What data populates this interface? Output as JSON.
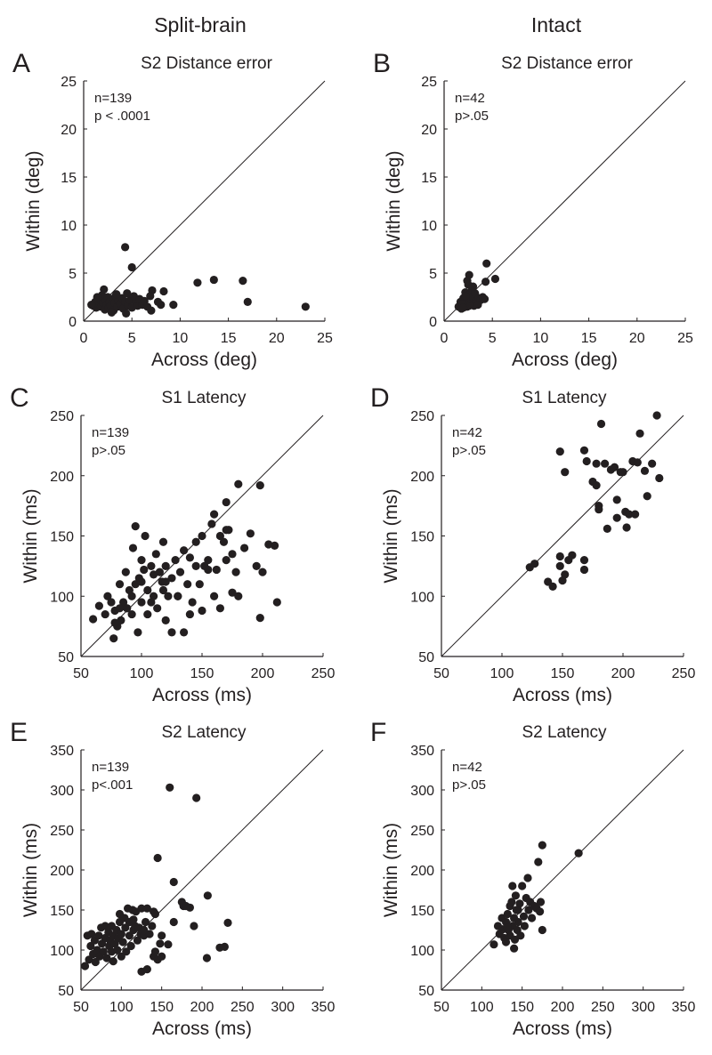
{
  "columns": [
    "Split-brain",
    "Intact"
  ],
  "chart_data": [
    {
      "type": "scatter",
      "panel": "A",
      "title": "S2 Distance error",
      "xlabel": "Across (deg)",
      "ylabel": "Within (deg)",
      "xlim": [
        0,
        25
      ],
      "ylim": [
        0,
        25
      ],
      "ticks": [
        0,
        5,
        10,
        15,
        20,
        25
      ],
      "n": "n=139",
      "p": "p < .0001",
      "diagonal": true,
      "points": [
        [
          1,
          1.6
        ],
        [
          1.2,
          2
        ],
        [
          1.3,
          1.4
        ],
        [
          1.5,
          1.8
        ],
        [
          1.6,
          2.3
        ],
        [
          1.8,
          1.5
        ],
        [
          1.9,
          2.7
        ],
        [
          2,
          1.9
        ],
        [
          2.1,
          3.3
        ],
        [
          2.2,
          1.2
        ],
        [
          2.3,
          2.1
        ],
        [
          2.4,
          1.7
        ],
        [
          2.5,
          2.5
        ],
        [
          2.6,
          1.4
        ],
        [
          2.7,
          2.0
        ],
        [
          2.8,
          1.6
        ],
        [
          3,
          2.3
        ],
        [
          3.1,
          1.1
        ],
        [
          3.2,
          1.9
        ],
        [
          3.3,
          2.6
        ],
        [
          3.5,
          1.5
        ],
        [
          3.6,
          2.1
        ],
        [
          3.8,
          1.8
        ],
        [
          4,
          2.4
        ],
        [
          4.1,
          1.3
        ],
        [
          4.3,
          2.0
        ],
        [
          4.5,
          2.9
        ],
        [
          4.6,
          1.6
        ],
        [
          4.8,
          2.2
        ],
        [
          5,
          1.4
        ],
        [
          5.2,
          2.6
        ],
        [
          5.4,
          1.9
        ],
        [
          5.6,
          1.6
        ],
        [
          5.8,
          2.3
        ],
        [
          6.1,
          1.7
        ],
        [
          6.3,
          2.1
        ],
        [
          6.6,
          1.5
        ],
        [
          7,
          1.1
        ],
        [
          0.8,
          1.7
        ],
        [
          1.4,
          2.5
        ],
        [
          2.9,
          0.9
        ],
        [
          3.4,
          2.8
        ],
        [
          4.4,
          0.8
        ],
        [
          4.3,
          7.7
        ],
        [
          5,
          5.6
        ],
        [
          11.8,
          4.0
        ],
        [
          13.5,
          4.3
        ],
        [
          16.5,
          4.2
        ],
        [
          17,
          2.0
        ],
        [
          23,
          1.5
        ],
        [
          7.1,
          3.2
        ],
        [
          8.3,
          3.1
        ],
        [
          9.3,
          1.7
        ],
        [
          6.9,
          2.6
        ],
        [
          8,
          1.7
        ],
        [
          7.7,
          2.0
        ]
      ]
    },
    {
      "type": "scatter",
      "panel": "B",
      "title": "S2 Distance error",
      "xlabel": "Across (deg)",
      "ylabel": "Within (deg)",
      "xlim": [
        0,
        25
      ],
      "ylim": [
        0,
        25
      ],
      "ticks": [
        0,
        5,
        10,
        15,
        20,
        25
      ],
      "n": "n=42",
      "p": "p>.05",
      "diagonal": true,
      "points": [
        [
          1.5,
          1.5
        ],
        [
          1.7,
          2.0
        ],
        [
          1.8,
          1.3
        ],
        [
          2,
          2.4
        ],
        [
          2.1,
          1.7
        ],
        [
          2.2,
          3.0
        ],
        [
          2.3,
          2.0
        ],
        [
          2.4,
          1.5
        ],
        [
          2.5,
          2.7
        ],
        [
          2.5,
          3.8
        ],
        [
          2.6,
          4.8
        ],
        [
          2.7,
          2.2
        ],
        [
          2.8,
          1.8
        ],
        [
          2.9,
          3.3
        ],
        [
          3,
          2.5
        ],
        [
          3.1,
          1.6
        ],
        [
          3.2,
          2.9
        ],
        [
          3.3,
          2.1
        ],
        [
          3.4,
          1.9
        ],
        [
          3.6,
          2.4
        ],
        [
          3.8,
          2.2
        ],
        [
          4,
          2.5
        ],
        [
          4.2,
          2.3
        ],
        [
          4.3,
          4.1
        ],
        [
          4.4,
          6.0
        ],
        [
          5.3,
          4.4
        ],
        [
          2.2,
          2.6
        ],
        [
          2.6,
          1.6
        ],
        [
          3,
          3.6
        ],
        [
          1.9,
          1.8
        ],
        [
          2.4,
          4.2
        ],
        [
          3.5,
          1.7
        ],
        [
          2.0,
          1.4
        ]
      ]
    },
    {
      "type": "scatter",
      "panel": "C",
      "title": "S1 Latency",
      "xlabel": "Across (ms)",
      "ylabel": "Within (ms)",
      "xlim": [
        50,
        250
      ],
      "ylim": [
        50,
        250
      ],
      "ticks": [
        50,
        100,
        150,
        200,
        250
      ],
      "n": "n=139",
      "p": "p>.05",
      "diagonal": true,
      "points": [
        [
          60,
          81
        ],
        [
          65,
          92
        ],
        [
          70,
          85
        ],
        [
          72,
          100
        ],
        [
          75,
          95
        ],
        [
          77,
          65
        ],
        [
          78,
          88
        ],
        [
          80,
          75
        ],
        [
          82,
          110
        ],
        [
          83,
          80
        ],
        [
          85,
          95
        ],
        [
          87,
          120
        ],
        [
          88,
          90
        ],
        [
          90,
          105
        ],
        [
          92,
          85
        ],
        [
          93,
          140
        ],
        [
          95,
          110
        ],
        [
          95,
          158
        ],
        [
          97,
          70
        ],
        [
          98,
          115
        ],
        [
          100,
          130
        ],
        [
          100,
          95
        ],
        [
          102,
          122
        ],
        [
          103,
          150
        ],
        [
          105,
          105
        ],
        [
          105,
          85
        ],
        [
          108,
          125
        ],
        [
          110,
          118
        ],
        [
          110,
          100
        ],
        [
          112,
          135
        ],
        [
          113,
          90
        ],
        [
          115,
          120
        ],
        [
          117,
          112
        ],
        [
          118,
          145
        ],
        [
          120,
          80
        ],
        [
          120,
          125
        ],
        [
          122,
          100
        ],
        [
          125,
          115
        ],
        [
          125,
          70
        ],
        [
          128,
          130
        ],
        [
          130,
          100
        ],
        [
          132,
          120
        ],
        [
          135,
          138
        ],
        [
          135,
          70
        ],
        [
          138,
          110
        ],
        [
          140,
          132
        ],
        [
          142,
          95
        ],
        [
          145,
          125
        ],
        [
          148,
          110
        ],
        [
          150,
          150
        ],
        [
          150,
          88
        ],
        [
          152,
          125
        ],
        [
          155,
          130
        ],
        [
          155,
          122
        ],
        [
          158,
          160
        ],
        [
          160,
          100
        ],
        [
          160,
          168
        ],
        [
          162,
          122
        ],
        [
          165,
          150
        ],
        [
          165,
          90
        ],
        [
          168,
          145
        ],
        [
          170,
          178
        ],
        [
          170,
          130
        ],
        [
          172,
          155
        ],
        [
          175,
          103
        ],
        [
          178,
          120
        ],
        [
          180,
          193
        ],
        [
          180,
          100
        ],
        [
          185,
          140
        ],
        [
          190,
          152
        ],
        [
          195,
          125
        ],
        [
          198,
          192
        ],
        [
          198,
          82
        ],
        [
          200,
          120
        ],
        [
          205,
          143
        ],
        [
          210,
          142
        ],
        [
          212,
          95
        ],
        [
          170,
          155
        ],
        [
          175,
          135
        ],
        [
          145,
          145
        ],
        [
          130,
          100
        ],
        [
          118,
          105
        ],
        [
          108,
          95
        ],
        [
          88,
          90
        ],
        [
          78,
          78
        ],
        [
          82,
          90
        ],
        [
          92,
          100
        ],
        [
          100,
          112
        ],
        [
          140,
          85
        ],
        [
          120,
          112
        ]
      ]
    },
    {
      "type": "scatter",
      "panel": "D",
      "title": "S1 Latency",
      "xlabel": "Across (ms)",
      "ylabel": "Within (ms)",
      "xlim": [
        50,
        250
      ],
      "ylim": [
        50,
        250
      ],
      "ticks": [
        50,
        100,
        150,
        200,
        250
      ],
      "n": "n=42",
      "p": "p>.05",
      "diagonal": true,
      "points": [
        [
          123,
          124
        ],
        [
          127,
          127
        ],
        [
          138,
          112
        ],
        [
          142,
          108
        ],
        [
          148,
          133
        ],
        [
          148,
          125
        ],
        [
          150,
          113
        ],
        [
          152,
          118
        ],
        [
          155,
          130
        ],
        [
          158,
          134
        ],
        [
          148,
          220
        ],
        [
          152,
          203
        ],
        [
          168,
          130
        ],
        [
          168,
          122
        ],
        [
          168,
          221
        ],
        [
          170,
          212
        ],
        [
          175,
          195
        ],
        [
          178,
          192
        ],
        [
          178,
          210
        ],
        [
          180,
          175
        ],
        [
          180,
          172
        ],
        [
          182,
          243
        ],
        [
          185,
          210
        ],
        [
          187,
          156
        ],
        [
          190,
          205
        ],
        [
          193,
          207
        ],
        [
          195,
          180
        ],
        [
          198,
          203
        ],
        [
          200,
          203
        ],
        [
          202,
          170
        ],
        [
          203,
          157
        ],
        [
          205,
          168
        ],
        [
          208,
          212
        ],
        [
          210,
          168
        ],
        [
          212,
          211
        ],
        [
          214,
          235
        ],
        [
          218,
          204
        ],
        [
          220,
          183
        ],
        [
          224,
          210
        ],
        [
          228,
          250
        ],
        [
          230,
          198
        ],
        [
          195,
          165
        ]
      ]
    },
    {
      "type": "scatter",
      "panel": "E",
      "title": "S2 Latency",
      "xlabel": "Across (ms)",
      "ylabel": "Within (ms)",
      "xlim": [
        50,
        350
      ],
      "ylim": [
        50,
        350
      ],
      "ticks": [
        50,
        100,
        150,
        200,
        250,
        300,
        350
      ],
      "n": "n=139",
      "p": "p<.001",
      "diagonal": true,
      "points": [
        [
          55,
          80
        ],
        [
          58,
          118
        ],
        [
          60,
          88
        ],
        [
          62,
          105
        ],
        [
          63,
          120
        ],
        [
          65,
          95
        ],
        [
          67,
          112
        ],
        [
          68,
          85
        ],
        [
          70,
          100
        ],
        [
          72,
          118
        ],
        [
          73,
          92
        ],
        [
          75,
          128
        ],
        [
          76,
          108
        ],
        [
          78,
          98
        ],
        [
          80,
          115
        ],
        [
          80,
          130
        ],
        [
          82,
          90
        ],
        [
          84,
          122
        ],
        [
          85,
          105
        ],
        [
          86,
          112
        ],
        [
          88,
          130
        ],
        [
          88,
          98
        ],
        [
          90,
          118
        ],
        [
          90,
          86
        ],
        [
          92,
          108
        ],
        [
          94,
          125
        ],
        [
          95,
          100
        ],
        [
          96,
          115
        ],
        [
          98,
          135
        ],
        [
          100,
          92
        ],
        [
          100,
          120
        ],
        [
          102,
          110
        ],
        [
          104,
          140
        ],
        [
          105,
          128
        ],
        [
          106,
          98
        ],
        [
          108,
          152
        ],
        [
          110,
          118
        ],
        [
          110,
          135
        ],
        [
          112,
          105
        ],
        [
          114,
          150
        ],
        [
          115,
          125
        ],
        [
          117,
          130
        ],
        [
          118,
          148
        ],
        [
          120,
          112
        ],
        [
          122,
          128
        ],
        [
          124,
          120
        ],
        [
          125,
          152
        ],
        [
          128,
          118
        ],
        [
          130,
          135
        ],
        [
          132,
          152
        ],
        [
          135,
          120
        ],
        [
          138,
          130
        ],
        [
          140,
          148
        ],
        [
          142,
          145
        ],
        [
          128,
          125
        ],
        [
          115,
          138
        ],
        [
          98,
          145
        ],
        [
          160,
          303
        ],
        [
          193,
          290
        ],
        [
          145,
          215
        ],
        [
          165,
          185
        ],
        [
          175,
          160
        ],
        [
          177,
          155
        ],
        [
          185,
          153
        ],
        [
          180,
          155
        ],
        [
          190,
          130
        ],
        [
          165,
          135
        ],
        [
          207,
          168
        ],
        [
          150,
          118
        ],
        [
          148,
          108
        ],
        [
          158,
          107
        ],
        [
          140,
          92
        ],
        [
          142,
          98
        ],
        [
          145,
          88
        ],
        [
          150,
          92
        ],
        [
          125,
          73
        ],
        [
          132,
          76
        ],
        [
          206,
          90
        ],
        [
          222,
          103
        ],
        [
          228,
          104
        ],
        [
          232,
          134
        ]
      ]
    },
    {
      "type": "scatter",
      "panel": "F",
      "title": "S2 Latency",
      "xlabel": "Across (ms)",
      "ylabel": "Within (ms)",
      "xlim": [
        50,
        350
      ],
      "ylim": [
        50,
        350
      ],
      "ticks": [
        50,
        100,
        150,
        200,
        250,
        300,
        350
      ],
      "n": "n=42",
      "p": "p>.05",
      "diagonal": true,
      "points": [
        [
          115,
          107
        ],
        [
          120,
          130
        ],
        [
          122,
          120
        ],
        [
          125,
          140
        ],
        [
          126,
          126
        ],
        [
          128,
          115
        ],
        [
          130,
          135
        ],
        [
          130,
          110
        ],
        [
          132,
          145
        ],
        [
          133,
          125
        ],
        [
          135,
          155
        ],
        [
          135,
          118
        ],
        [
          137,
          160
        ],
        [
          138,
          130
        ],
        [
          138,
          180
        ],
        [
          140,
          140
        ],
        [
          140,
          102
        ],
        [
          141,
          113
        ],
        [
          142,
          168
        ],
        [
          143,
          150
        ],
        [
          144,
          125
        ],
        [
          145,
          135
        ],
        [
          147,
          158
        ],
        [
          148,
          118
        ],
        [
          150,
          180
        ],
        [
          152,
          142
        ],
        [
          153,
          130
        ],
        [
          155,
          165
        ],
        [
          157,
          190
        ],
        [
          158,
          150
        ],
        [
          160,
          160
        ],
        [
          162,
          140
        ],
        [
          165,
          155
        ],
        [
          168,
          152
        ],
        [
          170,
          210
        ],
        [
          172,
          148
        ],
        [
          173,
          160
        ],
        [
          175,
          125
        ],
        [
          175,
          231
        ],
        [
          220,
          221
        ],
        [
          145,
          150
        ],
        [
          132,
          128
        ]
      ]
    }
  ]
}
